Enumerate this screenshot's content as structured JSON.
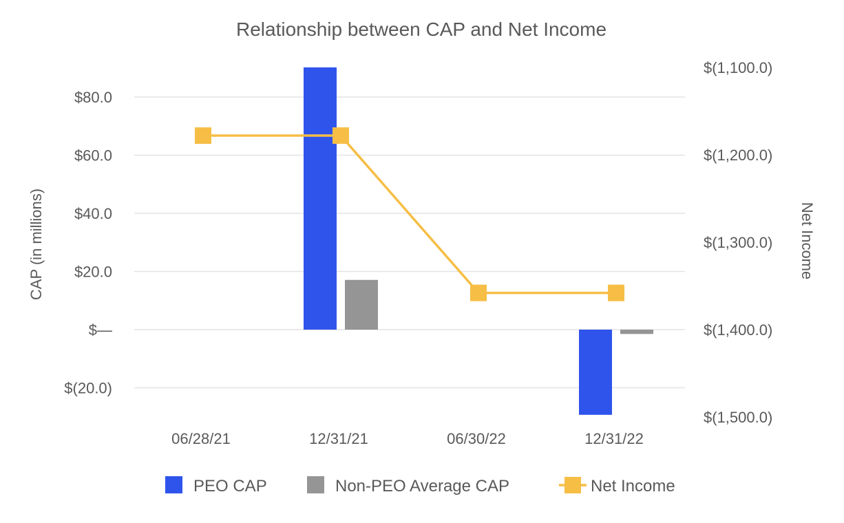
{
  "chart_data": {
    "type": "bar+line",
    "title": "Relationship between CAP and Net Income",
    "categories": [
      "06/28/21",
      "12/31/21",
      "06/30/22",
      "12/31/22"
    ],
    "ylabel_left": "CAP (in millions)",
    "ylabel_right": "Net Income",
    "y_left": {
      "range": [
        -30,
        90
      ],
      "ticks": [
        80,
        60,
        40,
        20,
        0,
        -20
      ],
      "tick_labels": [
        "$80.0",
        "$60.0",
        "$40.0",
        "$20.0",
        "$—",
        "$(20.0)"
      ]
    },
    "y_right": {
      "range": [
        -1500,
        -1100
      ],
      "ticks": [
        -1100,
        -1200,
        -1300,
        -1400,
        -1500
      ],
      "tick_labels": [
        "$(1,100.0)",
        "$(1,200.0)",
        "$(1,300.0)",
        "$(1,400.0)",
        "$(1,500.0)"
      ]
    },
    "series": [
      {
        "name": "PEO CAP",
        "type": "bar",
        "axis": "left",
        "color": "#2F54EB",
        "values": [
          null,
          90.2,
          null,
          -29.3
        ]
      },
      {
        "name": "Non-PEO Average CAP",
        "type": "bar",
        "axis": "left",
        "color": "#959595",
        "values": [
          null,
          17.1,
          null,
          -1.5
        ]
      },
      {
        "name": "Net Income",
        "type": "line",
        "axis": "right",
        "color": "#F6BE45",
        "values": [
          -1178,
          -1178,
          -1358,
          -1358
        ]
      }
    ],
    "legend": [
      "PEO CAP",
      "Non-PEO Average CAP",
      "Net Income"
    ],
    "legend_position": "bottom",
    "grid": true
  }
}
